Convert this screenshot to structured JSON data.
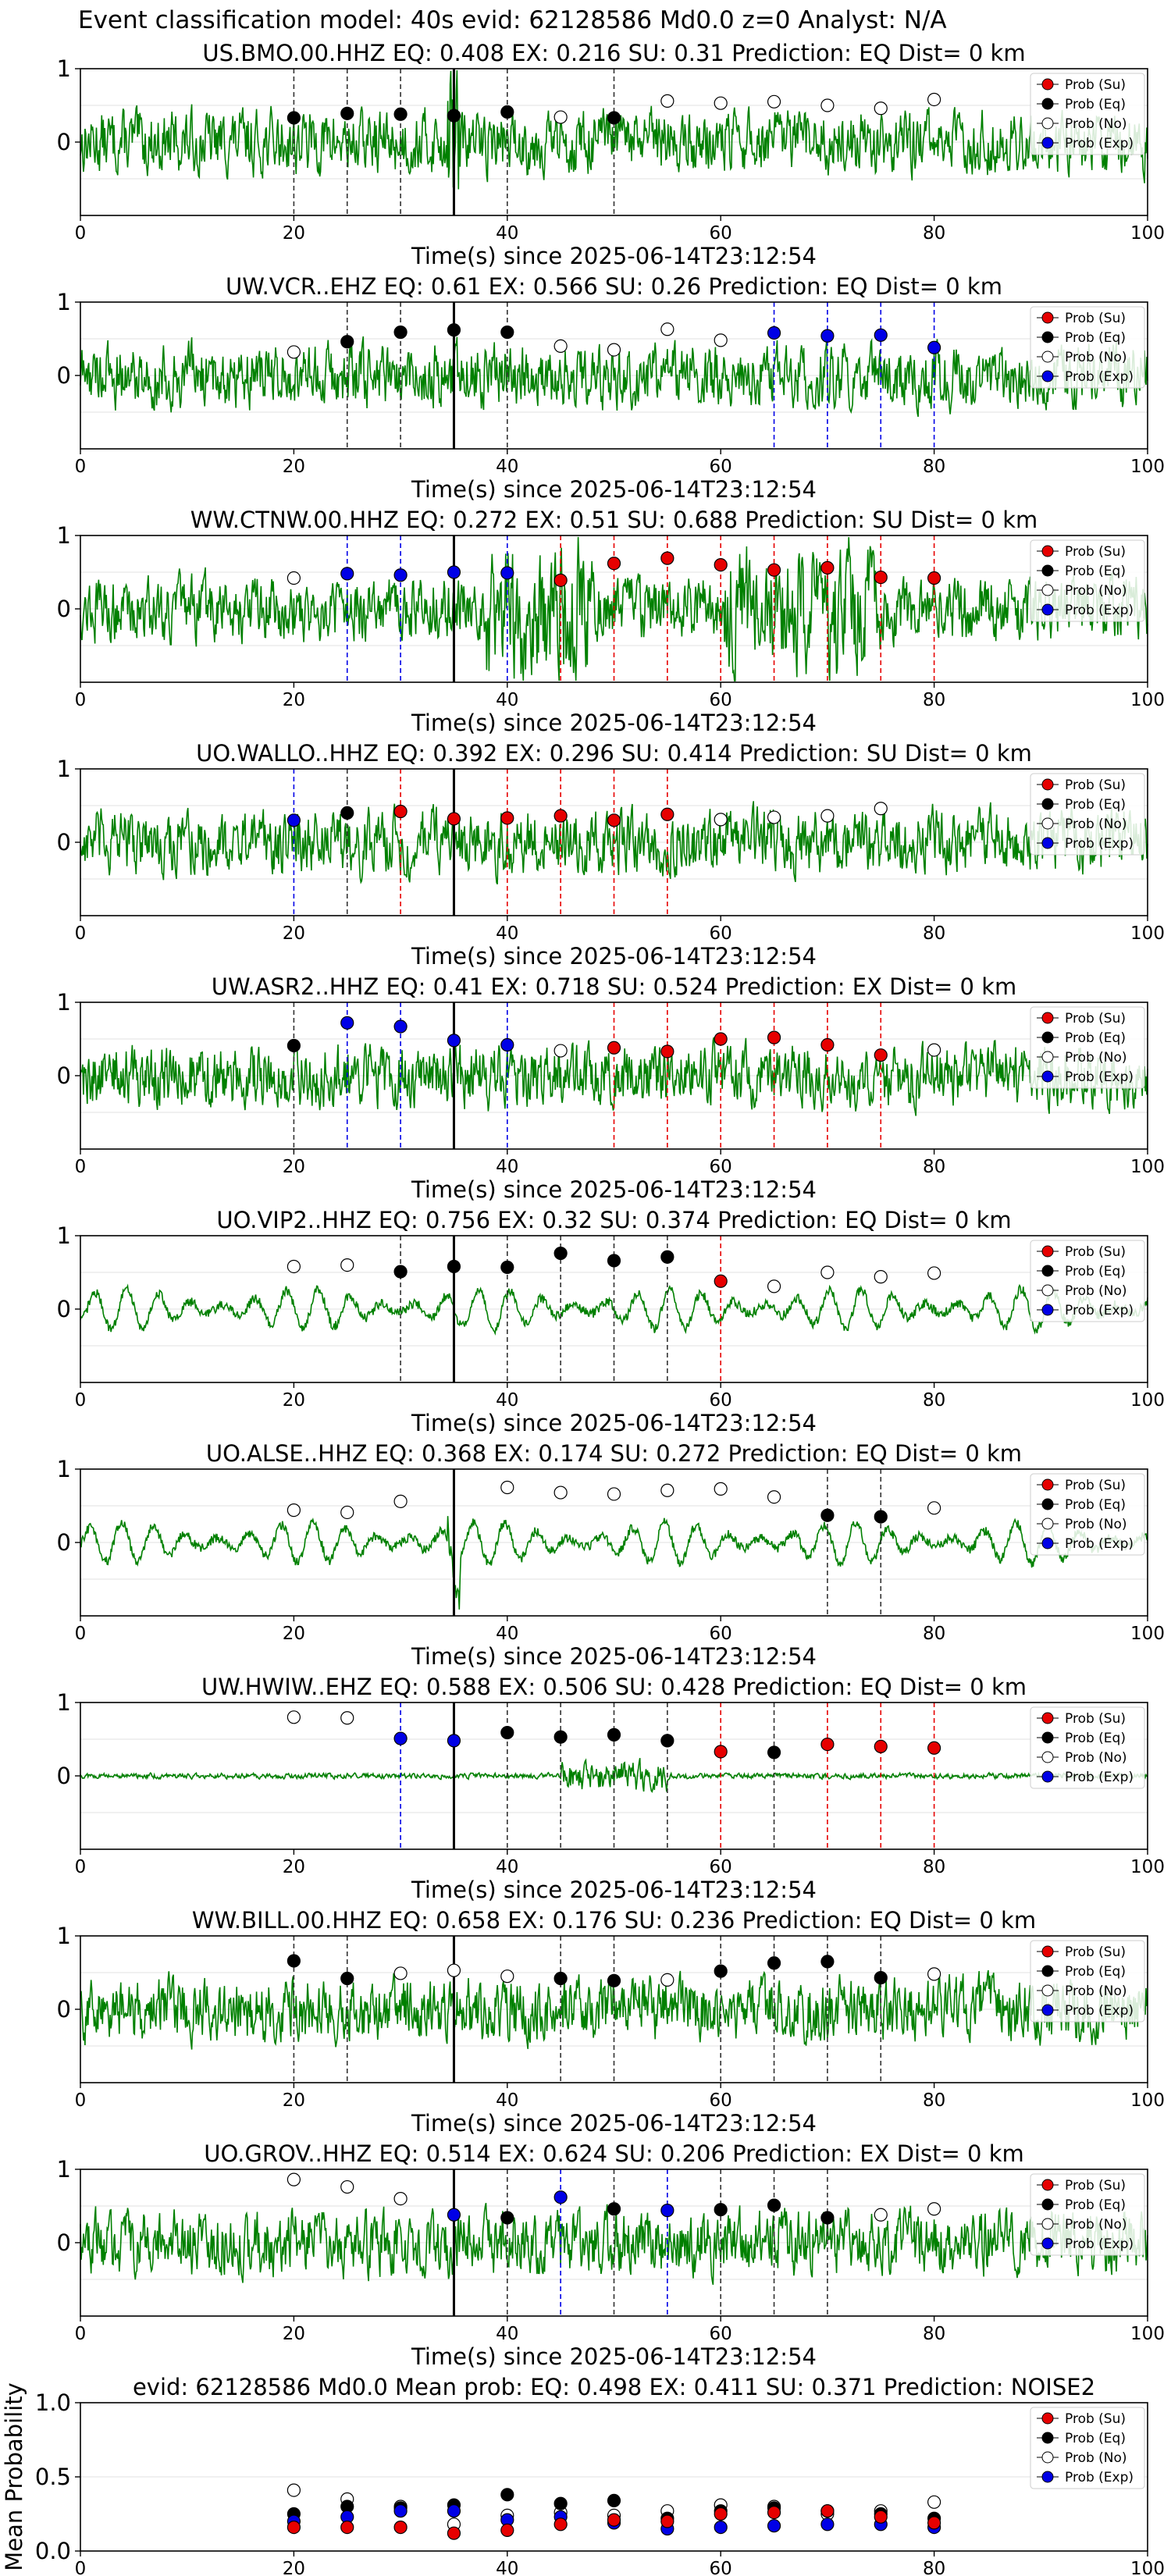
{
  "page_title": "Event classification model: 40s evid: 62128586 Md0.0 z=0 Analyst: N/A",
  "colors": {
    "trace": "#008000",
    "su": "#e60000",
    "eq": "#000000",
    "no": "#ffffff",
    "exp": "#0000e6",
    "p_line": "#000000",
    "grid": "#e0e0e0"
  },
  "legend_labels": [
    "Prob (Su)",
    "Prob (Eq)",
    "Prob (No)",
    "Prob (Exp)"
  ],
  "chart_data": [
    {
      "type": "line",
      "title": "US.BMO.00.HHZ   EQ: 0.408  EX: 0.216  SU: 0.31   Prediction: EQ    Dist= 0 km",
      "xlabel": "Time(s) since 2025-06-14T23:12:54",
      "xlim": [
        0,
        100
      ],
      "ylim": [
        -1,
        1
      ],
      "xticks": [
        "0",
        "20",
        "40",
        "60",
        "80",
        "100"
      ],
      "yticks": [
        "0",
        "1"
      ],
      "legend": "top-right",
      "p_arrival": 35,
      "points": [
        {
          "x": 20,
          "y": 0.33,
          "cls": "eq"
        },
        {
          "x": 25,
          "y": 0.39,
          "cls": "eq"
        },
        {
          "x": 30,
          "y": 0.38,
          "cls": "eq"
        },
        {
          "x": 35,
          "y": 0.36,
          "cls": "eq"
        },
        {
          "x": 40,
          "y": 0.41,
          "cls": "eq"
        },
        {
          "x": 45,
          "y": 0.34,
          "cls": "no"
        },
        {
          "x": 50,
          "y": 0.33,
          "cls": "eq"
        },
        {
          "x": 55,
          "y": 0.56,
          "cls": "no"
        },
        {
          "x": 60,
          "y": 0.53,
          "cls": "no"
        },
        {
          "x": 65,
          "y": 0.55,
          "cls": "no"
        },
        {
          "x": 70,
          "y": 0.5,
          "cls": "no"
        },
        {
          "x": 75,
          "y": 0.46,
          "cls": "no"
        },
        {
          "x": 80,
          "y": 0.58,
          "cls": "no"
        }
      ]
    },
    {
      "type": "line",
      "title": "UW.VCR..EHZ   EQ: 0.61  EX: 0.566  SU: 0.26   Prediction: EQ    Dist= 0 km",
      "xlabel": "Time(s) since 2025-06-14T23:12:54",
      "xlim": [
        0,
        100
      ],
      "ylim": [
        -1,
        1
      ],
      "xticks": [
        "0",
        "20",
        "40",
        "60",
        "80",
        "100"
      ],
      "yticks": [
        "0",
        "1"
      ],
      "legend": "top-right",
      "p_arrival": 35,
      "points": [
        {
          "x": 20,
          "y": 0.32,
          "cls": "no"
        },
        {
          "x": 25,
          "y": 0.46,
          "cls": "eq"
        },
        {
          "x": 30,
          "y": 0.59,
          "cls": "eq"
        },
        {
          "x": 35,
          "y": 0.62,
          "cls": "eq"
        },
        {
          "x": 40,
          "y": 0.59,
          "cls": "eq"
        },
        {
          "x": 45,
          "y": 0.4,
          "cls": "no"
        },
        {
          "x": 50,
          "y": 0.35,
          "cls": "no"
        },
        {
          "x": 55,
          "y": 0.63,
          "cls": "no"
        },
        {
          "x": 60,
          "y": 0.48,
          "cls": "no"
        },
        {
          "x": 65,
          "y": 0.58,
          "cls": "exp"
        },
        {
          "x": 70,
          "y": 0.54,
          "cls": "exp"
        },
        {
          "x": 75,
          "y": 0.55,
          "cls": "exp"
        },
        {
          "x": 80,
          "y": 0.38,
          "cls": "exp"
        }
      ]
    },
    {
      "type": "line",
      "title": "WW.CTNW.00.HHZ   EQ: 0.272  EX: 0.51  SU: 0.688   Prediction: SU    Dist= 0 km",
      "xlabel": "Time(s) since 2025-06-14T23:12:54",
      "xlim": [
        0,
        100
      ],
      "ylim": [
        -1,
        1
      ],
      "xticks": [
        "0",
        "20",
        "40",
        "60",
        "80",
        "100"
      ],
      "yticks": [
        "0",
        "1"
      ],
      "legend": "top-right",
      "p_arrival": 35,
      "points": [
        {
          "x": 20,
          "y": 0.42,
          "cls": "no"
        },
        {
          "x": 25,
          "y": 0.48,
          "cls": "exp"
        },
        {
          "x": 30,
          "y": 0.46,
          "cls": "exp"
        },
        {
          "x": 35,
          "y": 0.5,
          "cls": "exp"
        },
        {
          "x": 40,
          "y": 0.49,
          "cls": "exp"
        },
        {
          "x": 45,
          "y": 0.39,
          "cls": "su"
        },
        {
          "x": 50,
          "y": 0.62,
          "cls": "su"
        },
        {
          "x": 55,
          "y": 0.69,
          "cls": "su"
        },
        {
          "x": 60,
          "y": 0.6,
          "cls": "su"
        },
        {
          "x": 65,
          "y": 0.53,
          "cls": "su"
        },
        {
          "x": 70,
          "y": 0.56,
          "cls": "su"
        },
        {
          "x": 75,
          "y": 0.43,
          "cls": "su"
        },
        {
          "x": 80,
          "y": 0.42,
          "cls": "su"
        }
      ]
    },
    {
      "type": "line",
      "title": "UO.WALLO..HHZ   EQ: 0.392  EX: 0.296  SU: 0.414   Prediction: SU    Dist= 0 km",
      "xlabel": "Time(s) since 2025-06-14T23:12:54",
      "xlim": [
        0,
        100
      ],
      "ylim": [
        -1,
        1
      ],
      "xticks": [
        "0",
        "20",
        "40",
        "60",
        "80",
        "100"
      ],
      "yticks": [
        "0",
        "1"
      ],
      "legend": "top-right",
      "p_arrival": 35,
      "points": [
        {
          "x": 20,
          "y": 0.3,
          "cls": "exp"
        },
        {
          "x": 25,
          "y": 0.4,
          "cls": "eq"
        },
        {
          "x": 30,
          "y": 0.42,
          "cls": "su"
        },
        {
          "x": 35,
          "y": 0.32,
          "cls": "su"
        },
        {
          "x": 40,
          "y": 0.33,
          "cls": "su"
        },
        {
          "x": 45,
          "y": 0.36,
          "cls": "su"
        },
        {
          "x": 50,
          "y": 0.3,
          "cls": "su"
        },
        {
          "x": 55,
          "y": 0.38,
          "cls": "su"
        },
        {
          "x": 60,
          "y": 0.31,
          "cls": "no"
        },
        {
          "x": 65,
          "y": 0.34,
          "cls": "no"
        },
        {
          "x": 70,
          "y": 0.36,
          "cls": "no"
        },
        {
          "x": 75,
          "y": 0.46,
          "cls": "no"
        }
      ]
    },
    {
      "type": "line",
      "title": "UW.ASR2..HHZ   EQ: 0.41  EX: 0.718  SU: 0.524   Prediction: EX    Dist= 0 km",
      "xlabel": "Time(s) since 2025-06-14T23:12:54",
      "xlim": [
        0,
        100
      ],
      "ylim": [
        -1,
        1
      ],
      "xticks": [
        "0",
        "20",
        "40",
        "60",
        "80",
        "100"
      ],
      "yticks": [
        "0",
        "1"
      ],
      "legend": "top-right",
      "p_arrival": 35,
      "points": [
        {
          "x": 20,
          "y": 0.41,
          "cls": "eq"
        },
        {
          "x": 25,
          "y": 0.72,
          "cls": "exp"
        },
        {
          "x": 30,
          "y": 0.67,
          "cls": "exp"
        },
        {
          "x": 35,
          "y": 0.48,
          "cls": "exp"
        },
        {
          "x": 40,
          "y": 0.42,
          "cls": "exp"
        },
        {
          "x": 45,
          "y": 0.34,
          "cls": "no"
        },
        {
          "x": 50,
          "y": 0.38,
          "cls": "su"
        },
        {
          "x": 55,
          "y": 0.33,
          "cls": "su"
        },
        {
          "x": 60,
          "y": 0.5,
          "cls": "su"
        },
        {
          "x": 65,
          "y": 0.52,
          "cls": "su"
        },
        {
          "x": 70,
          "y": 0.42,
          "cls": "su"
        },
        {
          "x": 75,
          "y": 0.28,
          "cls": "su"
        },
        {
          "x": 80,
          "y": 0.35,
          "cls": "no"
        }
      ]
    },
    {
      "type": "line",
      "title": "UO.VIP2..HHZ   EQ: 0.756  EX: 0.32  SU: 0.374   Prediction: EQ    Dist= 0 km",
      "xlabel": "Time(s) since 2025-06-14T23:12:54",
      "xlim": [
        0,
        100
      ],
      "ylim": [
        -1,
        1
      ],
      "xticks": [
        "0",
        "20",
        "40",
        "60",
        "80",
        "100"
      ],
      "yticks": [
        "0",
        "1"
      ],
      "legend": "top-right",
      "p_arrival": 35,
      "points": [
        {
          "x": 20,
          "y": 0.58,
          "cls": "no"
        },
        {
          "x": 25,
          "y": 0.6,
          "cls": "no"
        },
        {
          "x": 30,
          "y": 0.51,
          "cls": "eq"
        },
        {
          "x": 35,
          "y": 0.58,
          "cls": "eq"
        },
        {
          "x": 40,
          "y": 0.57,
          "cls": "eq"
        },
        {
          "x": 45,
          "y": 0.76,
          "cls": "eq"
        },
        {
          "x": 50,
          "y": 0.66,
          "cls": "eq"
        },
        {
          "x": 55,
          "y": 0.71,
          "cls": "eq"
        },
        {
          "x": 60,
          "y": 0.38,
          "cls": "su"
        },
        {
          "x": 65,
          "y": 0.31,
          "cls": "no"
        },
        {
          "x": 70,
          "y": 0.5,
          "cls": "no"
        },
        {
          "x": 75,
          "y": 0.44,
          "cls": "no"
        },
        {
          "x": 80,
          "y": 0.49,
          "cls": "no"
        }
      ]
    },
    {
      "type": "line",
      "title": "UO.ALSE..HHZ   EQ: 0.368  EX: 0.174  SU: 0.272   Prediction: EQ    Dist= 0 km",
      "xlabel": "Time(s) since 2025-06-14T23:12:54",
      "xlim": [
        0,
        100
      ],
      "ylim": [
        -1,
        1
      ],
      "xticks": [
        "0",
        "20",
        "40",
        "60",
        "80",
        "100"
      ],
      "yticks": [
        "0",
        "1"
      ],
      "legend": "top-right",
      "p_arrival": 35,
      "points": [
        {
          "x": 20,
          "y": 0.44,
          "cls": "no"
        },
        {
          "x": 25,
          "y": 0.41,
          "cls": "no"
        },
        {
          "x": 30,
          "y": 0.56,
          "cls": "no"
        },
        {
          "x": 40,
          "y": 0.75,
          "cls": "no"
        },
        {
          "x": 45,
          "y": 0.68,
          "cls": "no"
        },
        {
          "x": 50,
          "y": 0.66,
          "cls": "no"
        },
        {
          "x": 55,
          "y": 0.71,
          "cls": "no"
        },
        {
          "x": 60,
          "y": 0.73,
          "cls": "no"
        },
        {
          "x": 65,
          "y": 0.62,
          "cls": "no"
        },
        {
          "x": 70,
          "y": 0.37,
          "cls": "eq"
        },
        {
          "x": 75,
          "y": 0.35,
          "cls": "eq"
        },
        {
          "x": 80,
          "y": 0.47,
          "cls": "no"
        }
      ]
    },
    {
      "type": "line",
      "title": "UW.HWIW..EHZ   EQ: 0.588  EX: 0.506  SU: 0.428   Prediction: EQ    Dist= 0 km",
      "xlabel": "Time(s) since 2025-06-14T23:12:54",
      "xlim": [
        0,
        100
      ],
      "ylim": [
        -1,
        1
      ],
      "xticks": [
        "0",
        "20",
        "40",
        "60",
        "80",
        "100"
      ],
      "yticks": [
        "0",
        "1"
      ],
      "legend": "top-right",
      "p_arrival": 35,
      "points": [
        {
          "x": 20,
          "y": 0.8,
          "cls": "no"
        },
        {
          "x": 25,
          "y": 0.79,
          "cls": "no"
        },
        {
          "x": 30,
          "y": 0.51,
          "cls": "exp"
        },
        {
          "x": 35,
          "y": 0.48,
          "cls": "exp"
        },
        {
          "x": 40,
          "y": 0.59,
          "cls": "eq"
        },
        {
          "x": 45,
          "y": 0.53,
          "cls": "eq"
        },
        {
          "x": 50,
          "y": 0.56,
          "cls": "eq"
        },
        {
          "x": 55,
          "y": 0.48,
          "cls": "eq"
        },
        {
          "x": 60,
          "y": 0.33,
          "cls": "su"
        },
        {
          "x": 65,
          "y": 0.32,
          "cls": "eq"
        },
        {
          "x": 70,
          "y": 0.43,
          "cls": "su"
        },
        {
          "x": 75,
          "y": 0.4,
          "cls": "su"
        },
        {
          "x": 80,
          "y": 0.38,
          "cls": "su"
        }
      ]
    },
    {
      "type": "line",
      "title": "WW.BILL.00.HHZ   EQ: 0.658  EX: 0.176  SU: 0.236   Prediction: EQ    Dist= 0 km",
      "xlabel": "Time(s) since 2025-06-14T23:12:54",
      "xlim": [
        0,
        100
      ],
      "ylim": [
        -1,
        1
      ],
      "xticks": [
        "0",
        "20",
        "40",
        "60",
        "80",
        "100"
      ],
      "yticks": [
        "0",
        "1"
      ],
      "legend": "top-right",
      "p_arrival": 35,
      "points": [
        {
          "x": 20,
          "y": 0.66,
          "cls": "eq"
        },
        {
          "x": 25,
          "y": 0.42,
          "cls": "eq"
        },
        {
          "x": 30,
          "y": 0.49,
          "cls": "no"
        },
        {
          "x": 35,
          "y": 0.53,
          "cls": "no"
        },
        {
          "x": 40,
          "y": 0.45,
          "cls": "no"
        },
        {
          "x": 45,
          "y": 0.42,
          "cls": "eq"
        },
        {
          "x": 50,
          "y": 0.39,
          "cls": "eq"
        },
        {
          "x": 55,
          "y": 0.4,
          "cls": "no"
        },
        {
          "x": 60,
          "y": 0.52,
          "cls": "eq"
        },
        {
          "x": 65,
          "y": 0.63,
          "cls": "eq"
        },
        {
          "x": 70,
          "y": 0.65,
          "cls": "eq"
        },
        {
          "x": 75,
          "y": 0.43,
          "cls": "eq"
        },
        {
          "x": 80,
          "y": 0.48,
          "cls": "no"
        }
      ]
    },
    {
      "type": "line",
      "title": "UO.GROV..HHZ   EQ: 0.514  EX: 0.624  SU: 0.206   Prediction: EX    Dist= 0 km",
      "xlabel": "Time(s) since 2025-06-14T23:12:54",
      "xlim": [
        0,
        100
      ],
      "ylim": [
        -1,
        1
      ],
      "xticks": [
        "0",
        "20",
        "40",
        "60",
        "80",
        "100"
      ],
      "yticks": [
        "0",
        "1"
      ],
      "legend": "top-right",
      "p_arrival": 35,
      "points": [
        {
          "x": 20,
          "y": 0.86,
          "cls": "no"
        },
        {
          "x": 25,
          "y": 0.76,
          "cls": "no"
        },
        {
          "x": 30,
          "y": 0.6,
          "cls": "no"
        },
        {
          "x": 35,
          "y": 0.38,
          "cls": "exp"
        },
        {
          "x": 40,
          "y": 0.34,
          "cls": "eq"
        },
        {
          "x": 45,
          "y": 0.62,
          "cls": "exp"
        },
        {
          "x": 50,
          "y": 0.46,
          "cls": "eq"
        },
        {
          "x": 55,
          "y": 0.44,
          "cls": "exp"
        },
        {
          "x": 60,
          "y": 0.45,
          "cls": "eq"
        },
        {
          "x": 65,
          "y": 0.51,
          "cls": "eq"
        },
        {
          "x": 70,
          "y": 0.34,
          "cls": "eq"
        },
        {
          "x": 75,
          "y": 0.38,
          "cls": "no"
        },
        {
          "x": 80,
          "y": 0.46,
          "cls": "no"
        }
      ]
    },
    {
      "type": "scatter",
      "title": "evid: 62128586  Md0.0   Mean prob:   EQ: 0.498  EX: 0.411  SU: 0.371   Prediction: NOISE2",
      "ylabel": "Mean Probability",
      "xlim": [
        0,
        100
      ],
      "ylim": [
        0,
        1
      ],
      "xticks": [
        "0",
        "20",
        "40",
        "60",
        "80",
        "100"
      ],
      "yticks": [
        "0.0",
        "0.5",
        "1.0"
      ],
      "legend": "top-right",
      "x": [
        20,
        25,
        30,
        35,
        40,
        45,
        50,
        55,
        60,
        65,
        70,
        75,
        80
      ],
      "series": [
        {
          "name": "Prob (No)",
          "cls": "no",
          "values": [
            0.41,
            0.35,
            0.3,
            0.18,
            0.24,
            0.26,
            0.24,
            0.27,
            0.31,
            0.3,
            0.25,
            0.27,
            0.33
          ]
        },
        {
          "name": "Prob (Eq)",
          "cls": "eq",
          "values": [
            0.25,
            0.3,
            0.29,
            0.31,
            0.38,
            0.32,
            0.34,
            0.22,
            0.27,
            0.29,
            0.27,
            0.25,
            0.22
          ]
        },
        {
          "name": "Prob (Exp)",
          "cls": "exp",
          "values": [
            0.2,
            0.23,
            0.27,
            0.27,
            0.21,
            0.23,
            0.19,
            0.15,
            0.16,
            0.17,
            0.18,
            0.18,
            0.16
          ]
        },
        {
          "name": "Prob (Su)",
          "cls": "su",
          "values": [
            0.16,
            0.16,
            0.16,
            0.12,
            0.14,
            0.18,
            0.21,
            0.2,
            0.25,
            0.26,
            0.27,
            0.23,
            0.19
          ]
        }
      ]
    }
  ]
}
